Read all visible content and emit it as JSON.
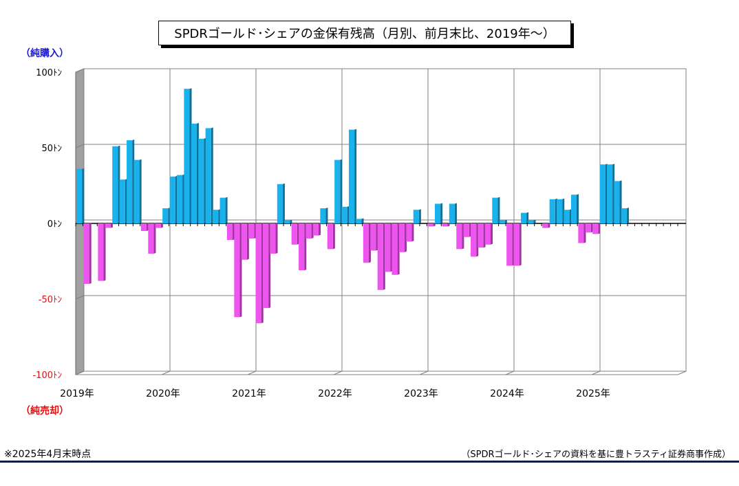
{
  "title": "SPDRゴールド･シェアの金保有残高（月別、前月末比、2019年～）",
  "label_top": "（純購入）",
  "label_bottom": "（純売却）",
  "note": "※2025年4月末時点",
  "source": "（SPDRゴールド･シェアの資料を基に豊トラスティ証券商事作成）",
  "colors": {
    "positive": "#1ab2ec",
    "negative": "#ee55ee",
    "positive_dark": "#126f96",
    "negative_dark": "#9e349e",
    "ytick_positive": "#000000",
    "ytick_negative": "#e01010"
  },
  "chart_data": {
    "type": "bar",
    "ylim": [
      -100,
      100
    ],
    "y_ticks": [
      {
        "value": 100,
        "label": "100ﾄﾝ"
      },
      {
        "value": 50,
        "label": "50ﾄﾝ"
      },
      {
        "value": 0,
        "label": "0ﾄﾝ"
      },
      {
        "value": -50,
        "label": "-50ﾄﾝ"
      },
      {
        "value": -100,
        "label": "-100ﾄﾝ"
      }
    ],
    "x_labels": [
      "2019年",
      "2020年",
      "2021年",
      "2022年",
      "2023年",
      "2024年",
      "2025年"
    ],
    "start": "2019-01",
    "values": [
      36,
      -40,
      0,
      -38,
      -3,
      51,
      29,
      55,
      42,
      -5,
      -20,
      -3,
      10,
      31,
      32,
      89,
      66,
      56,
      63,
      9,
      17,
      -11,
      -62,
      -24,
      -10,
      -66,
      -56,
      -20,
      26,
      2,
      -14,
      -31,
      -10,
      -8,
      10,
      -17,
      42,
      11,
      62,
      3,
      -26,
      -18,
      -44,
      -32,
      -34,
      -19,
      -12,
      9,
      0,
      -2,
      13,
      -2,
      13,
      -17,
      -9,
      -22,
      -16,
      -14,
      17,
      2,
      -28,
      -28,
      7,
      2,
      0,
      -3,
      16,
      16,
      9,
      19,
      -13,
      -6,
      -7,
      39,
      39,
      28,
      10
    ]
  }
}
